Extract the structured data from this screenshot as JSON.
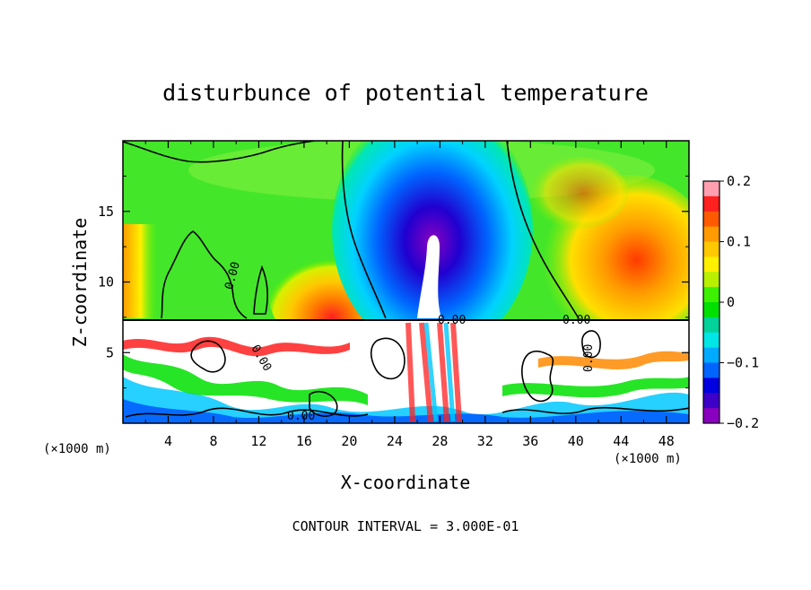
{
  "chart_data": {
    "type": "heatmap",
    "title": "disturbunce of potential temperature",
    "xlabel": "X-coordinate",
    "ylabel": "Z-coordinate",
    "x_unit": "(×1000 m)",
    "z_unit": "(×1000 m)",
    "x_ticks": [
      4,
      8,
      12,
      16,
      20,
      24,
      28,
      32,
      36,
      40,
      44,
      48
    ],
    "z_ticks": [
      5,
      10,
      15
    ],
    "xlim": [
      0,
      50
    ],
    "zlim": [
      0,
      20
    ],
    "colorbar": {
      "ticks": [
        "0.2",
        "0.1",
        "0",
        "−0.1",
        "−0.2"
      ],
      "range": [
        -0.2,
        0.2
      ],
      "colors": [
        "#ff9fb0",
        "#ff2020",
        "#ff5a00",
        "#ff9a00",
        "#ffc800",
        "#fff000",
        "#b8f000",
        "#3cf000",
        "#00e000",
        "#00d29a",
        "#00e6e6",
        "#00aaff",
        "#0064ff",
        "#0000e0",
        "#3c00c8",
        "#8a00c0"
      ]
    },
    "contour_labels": [
      "0.00",
      "0.00",
      "0.00",
      "0.00",
      "0.00",
      "0.00"
    ],
    "footer": "CONTOUR INTERVAL = 3.000E-01"
  }
}
